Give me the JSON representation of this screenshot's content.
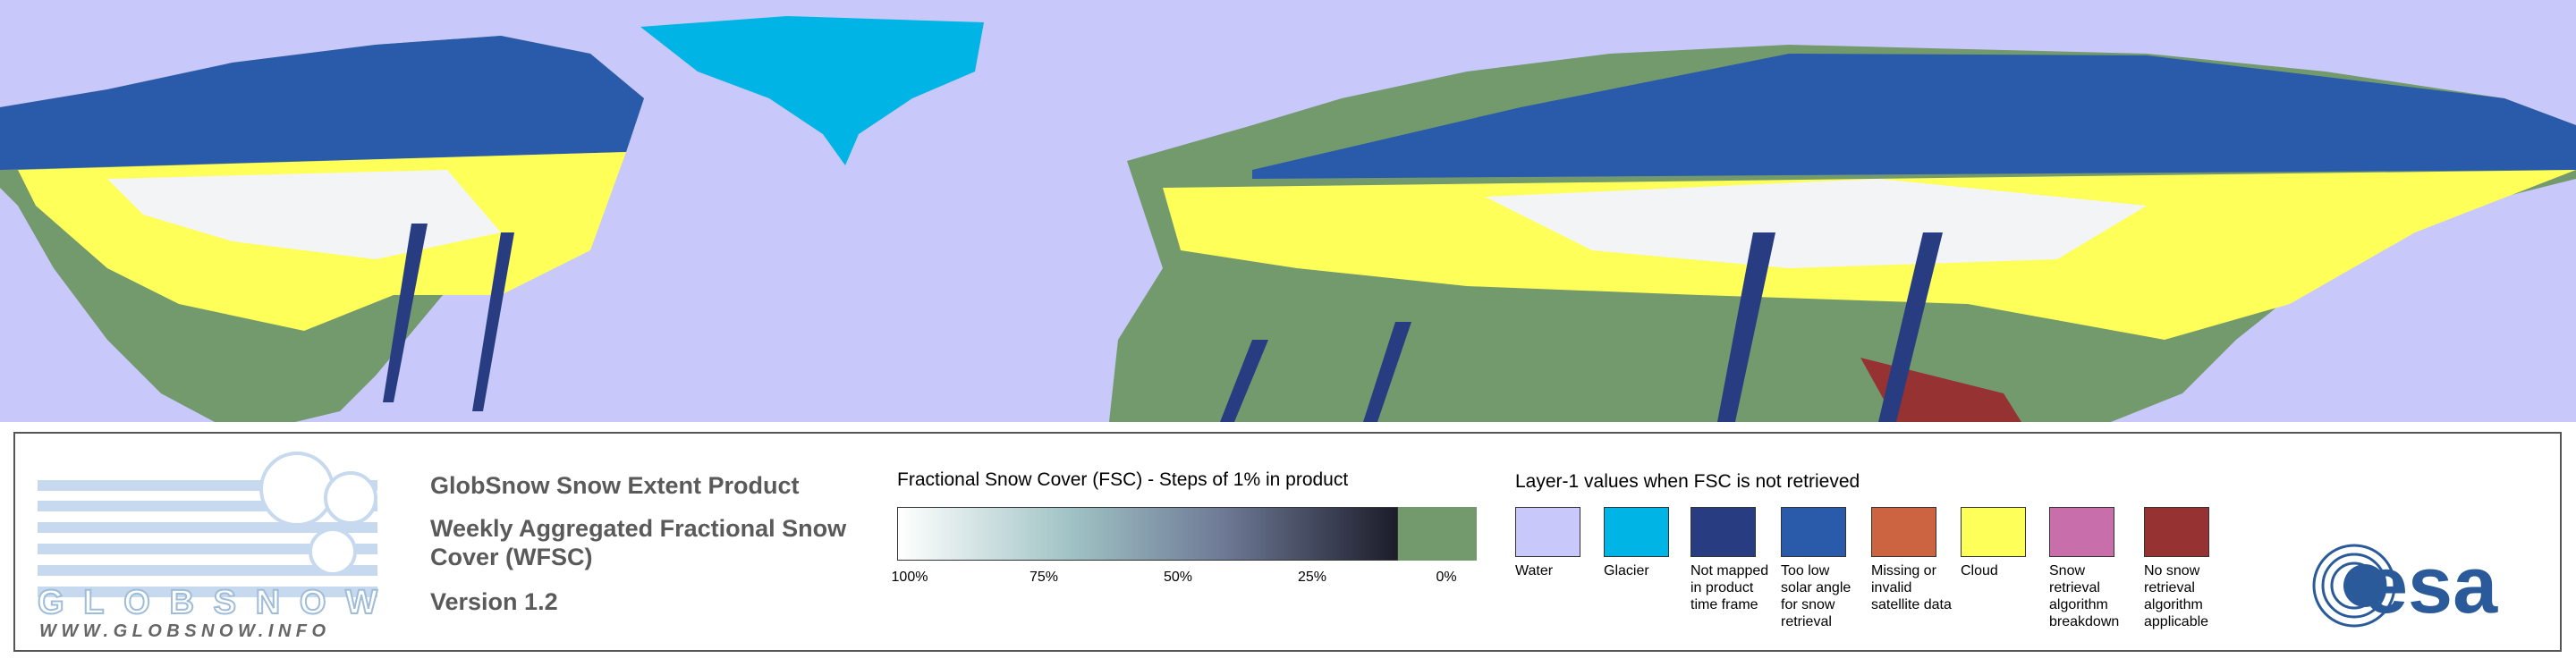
{
  "product": {
    "title": "GlobSnow Snow Extent Product",
    "subtitle": "Weekly Aggregated Fractional Snow Cover (WFSC)",
    "version": "Version 1.2"
  },
  "logo": {
    "name": "GLOBSNOW",
    "url": "WWW.GLOBSNOW.INFO",
    "agency": "esa"
  },
  "fsc_legend": {
    "title": "Fractional Snow Cover (FSC) - Steps of 1% in product",
    "labels": [
      "100%",
      "75%",
      "50%",
      "25%",
      "0%"
    ],
    "no_snow_color": "#739a6c"
  },
  "layer1_legend": {
    "title": "Layer-1 values when FSC is not retrieved",
    "items": [
      {
        "label": "Water",
        "color": "#c8c8fa"
      },
      {
        "label": "Glacier",
        "color": "#00b4e6"
      },
      {
        "label": "Not mapped in product time frame",
        "color": "#283c82"
      },
      {
        "label": "Too low solar angle for snow retrieval",
        "color": "#2a5aaa"
      },
      {
        "label": "Missing or invalid satellite data",
        "color": "#cd6441"
      },
      {
        "label": "Cloud",
        "color": "#ffff5a"
      },
      {
        "label": "Snow retrieval algorithm breakdown",
        "color": "#c86eaa"
      },
      {
        "label": "No snow retrieval algorithm applicable",
        "color": "#963232"
      }
    ]
  }
}
